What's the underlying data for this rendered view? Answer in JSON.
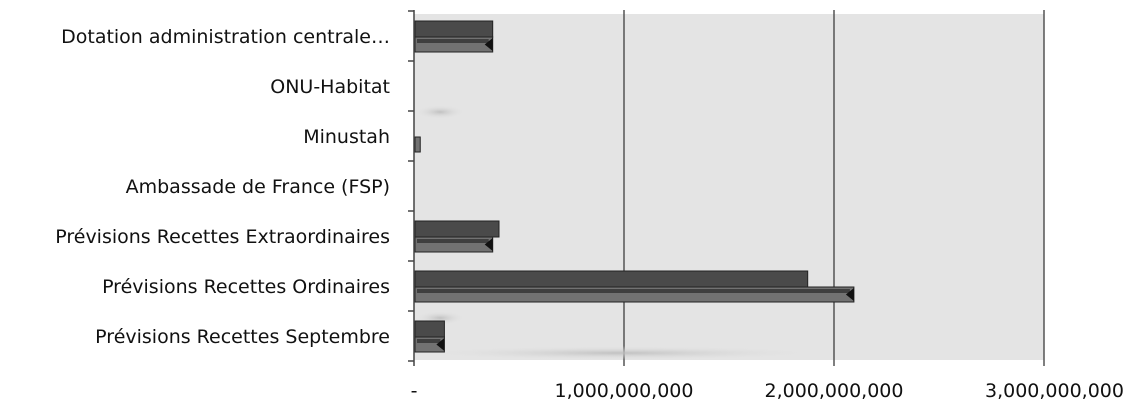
{
  "chart_data": {
    "type": "bar",
    "orientation": "horizontal",
    "style": "3d-clustered-bar",
    "categories": [
      "Dotation administration centrale…",
      "ONU-Habitat",
      "Minustah",
      "Ambassade de France (FSP)",
      "Prévisions Recettes Extraordinaires",
      "Prévisions Recettes Ordinaires",
      "Prévisions Recettes Septembre"
    ],
    "series": [
      {
        "values": [
          370000000,
          0,
          0,
          0,
          400000000,
          1870000000,
          140000000
        ]
      },
      {
        "values": [
          370000000,
          0,
          25000000,
          0,
          370000000,
          2090000000,
          140000000
        ]
      }
    ],
    "x_ticks": [
      "-",
      "1,000,000,000",
      "2,000,000,000",
      "3,000,000,000"
    ],
    "xlim": [
      0,
      3000000000
    ],
    "grid": true,
    "title": "",
    "xlabel": "",
    "ylabel": "",
    "colors": {
      "plot_background": "#e4e4e4",
      "gridline": "#555555",
      "series_0": "#4a4a4a",
      "series_1": "#727272",
      "bar_outline": "#222222"
    }
  }
}
